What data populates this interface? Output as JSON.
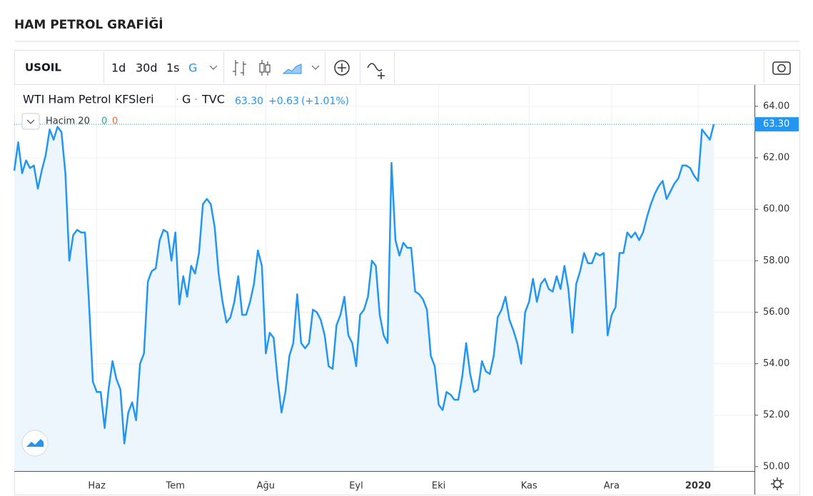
{
  "header": {
    "title": "HAM PETROL GRAFİĞİ"
  },
  "toolbar": {
    "symbol": "USOIL",
    "intervals": [
      "1d",
      "30d",
      "1s",
      "G"
    ]
  },
  "legend": {
    "instrument": "WTI Ham Petrol KFSleri",
    "interval": "G",
    "source": "TVC",
    "price": "63.30",
    "change": "+0.63",
    "change_pct": "(+1.01%)",
    "volume_label": "Hacim 20",
    "volume_a": "0",
    "volume_b": "0"
  },
  "chart_data": {
    "type": "area",
    "color": "#2196f3",
    "fill": "#eef6fd",
    "grid": true,
    "categories": [
      null,
      null,
      null,
      null,
      null,
      null,
      null,
      null,
      null,
      null,
      null,
      null,
      null,
      null,
      null,
      null,
      null,
      null,
      null,
      null,
      null,
      "Haz",
      null,
      null,
      null,
      null,
      null,
      null,
      null,
      null,
      null,
      null,
      null,
      null,
      null,
      null,
      null,
      null,
      null,
      null,
      null,
      "Tem",
      null,
      null,
      null,
      null,
      null,
      null,
      null,
      null,
      null,
      null,
      null,
      null,
      null,
      null,
      null,
      null,
      null,
      null,
      null,
      null,
      null,
      null,
      "Ağu",
      null,
      null,
      null,
      null,
      null,
      null,
      null,
      null,
      null,
      null,
      null,
      null,
      null,
      null,
      null,
      null,
      null,
      null,
      null,
      null,
      null,
      null,
      "Eyl",
      null,
      null,
      null,
      null,
      null,
      null,
      null,
      null,
      null,
      null,
      null,
      null,
      null,
      null,
      null,
      null,
      null,
      null,
      null,
      null,
      "Eki",
      null,
      null,
      null,
      null,
      null,
      null,
      null,
      null,
      null,
      null,
      null,
      null,
      null,
      null,
      null,
      null,
      null,
      null,
      null,
      null,
      null,
      null,
      "Kas",
      null,
      null,
      null,
      null,
      null,
      null,
      null,
      null,
      null,
      null,
      null,
      null,
      null,
      null,
      null,
      null,
      null,
      null,
      null,
      null,
      "Ara",
      null,
      null,
      null,
      null,
      null,
      null,
      null,
      null,
      null,
      null,
      null,
      null,
      null,
      null,
      null,
      null,
      null,
      null,
      null,
      null,
      null,
      "2020",
      null,
      null,
      null,
      null
    ],
    "values": [
      61.5,
      62.6,
      61.4,
      61.9,
      61.6,
      61.7,
      60.8,
      61.5,
      62.1,
      63.1,
      62.7,
      63.2,
      63.0,
      61.4,
      58.0,
      59.0,
      59.2,
      59.1,
      59.1,
      56.4,
      53.3,
      52.9,
      52.9,
      51.5,
      53.0,
      54.1,
      53.4,
      53.0,
      50.9,
      52.1,
      52.5,
      51.8,
      54.0,
      54.4,
      57.2,
      57.6,
      57.7,
      58.8,
      59.2,
      59.1,
      58.0,
      59.1,
      56.3,
      57.4,
      56.6,
      57.8,
      57.5,
      58.3,
      60.2,
      60.4,
      60.2,
      59.3,
      57.5,
      56.4,
      55.6,
      55.8,
      56.4,
      57.4,
      55.9,
      55.9,
      56.4,
      57.1,
      58.4,
      57.8,
      54.4,
      55.2,
      55.0,
      53.4,
      52.1,
      52.9,
      54.3,
      54.8,
      56.7,
      54.8,
      54.6,
      54.8,
      56.1,
      56.0,
      55.7,
      55.1,
      53.9,
      53.8,
      55.5,
      55.9,
      56.6,
      55.1,
      54.8,
      53.9,
      55.9,
      56.1,
      56.6,
      58.0,
      57.8,
      55.9,
      55.1,
      54.8,
      61.8,
      58.8,
      58.2,
      58.7,
      58.5,
      58.5,
      56.8,
      56.7,
      56.5,
      56.1,
      54.3,
      53.9,
      52.4,
      52.2,
      52.9,
      52.8,
      52.6,
      52.6,
      53.5,
      54.8,
      53.6,
      52.9,
      53.0,
      54.1,
      53.7,
      53.6,
      54.3,
      55.8,
      56.1,
      56.6,
      55.7,
      55.3,
      54.8,
      54.0,
      56.0,
      56.4,
      57.3,
      56.4,
      57.1,
      57.3,
      56.9,
      56.8,
      57.4,
      56.9,
      57.8,
      56.9,
      55.2,
      57.1,
      57.6,
      58.3,
      57.9,
      57.9,
      58.3,
      58.2,
      58.3,
      55.1,
      55.9,
      56.2,
      58.3,
      58.3,
      59.1,
      58.9,
      59.1,
      58.8,
      59.1,
      59.7,
      60.2,
      60.6,
      60.9,
      61.1,
      60.4,
      60.7,
      61.0,
      61.2,
      61.7,
      61.7,
      61.6,
      61.3,
      61.1,
      63.1,
      62.9,
      62.7,
      63.3
    ],
    "ylim": [
      49.83,
      64.83
    ],
    "yticks": [
      {
        "value": 50,
        "label": "50.00"
      },
      {
        "value": 52,
        "label": "52.00"
      },
      {
        "value": 54,
        "label": "54.00"
      },
      {
        "value": 56,
        "label": "56.00"
      },
      {
        "value": 58,
        "label": "58.00"
      },
      {
        "value": 60,
        "label": "60.00"
      },
      {
        "value": 62,
        "label": "62.00"
      },
      {
        "value": 64,
        "label": "64.00"
      }
    ]
  }
}
